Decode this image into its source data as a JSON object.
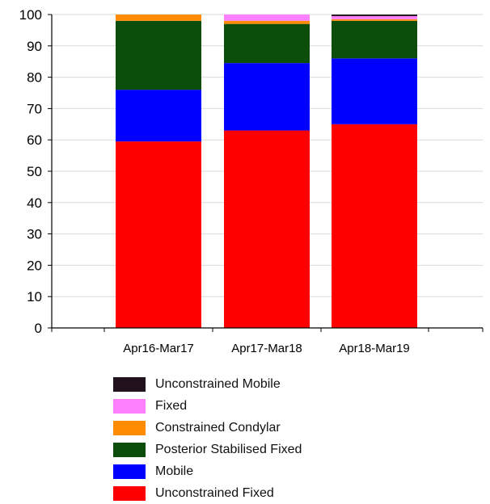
{
  "chart_data": {
    "type": "bar",
    "stacked": true,
    "categories": [
      "Apr16-Mar17",
      "Apr17-Mar18",
      "Apr18-Mar19"
    ],
    "series": [
      {
        "name": "Unconstrained Fixed",
        "color": "#ff0000",
        "values": [
          59.5,
          63,
          65
        ]
      },
      {
        "name": "Mobile",
        "color": "#0000ff",
        "values": [
          16.5,
          21.5,
          21
        ]
      },
      {
        "name": "Posterior Stabilised Fixed",
        "color": "#0b4d0b",
        "values": [
          22,
          12.5,
          12
        ]
      },
      {
        "name": "Constrained Condylar",
        "color": "#ff8c00",
        "values": [
          2,
          1,
          0.5
        ]
      },
      {
        "name": "Fixed",
        "color": "#ff80ff",
        "values": [
          0,
          2,
          1
        ]
      },
      {
        "name": "Unconstrained Mobile",
        "color": "#21121e",
        "values": [
          0,
          0,
          0.5
        ]
      }
    ],
    "yticks": [
      "0",
      "10",
      "20",
      "30",
      "40",
      "50",
      "60",
      "70",
      "80",
      "90",
      "100"
    ],
    "ylim": [
      0,
      100
    ],
    "grid": true,
    "legend_position": "bottom",
    "legend_order": [
      "Unconstrained Mobile",
      "Fixed",
      "Constrained Condylar",
      "Posterior Stabilised Fixed",
      "Mobile",
      "Unconstrained Fixed"
    ]
  }
}
